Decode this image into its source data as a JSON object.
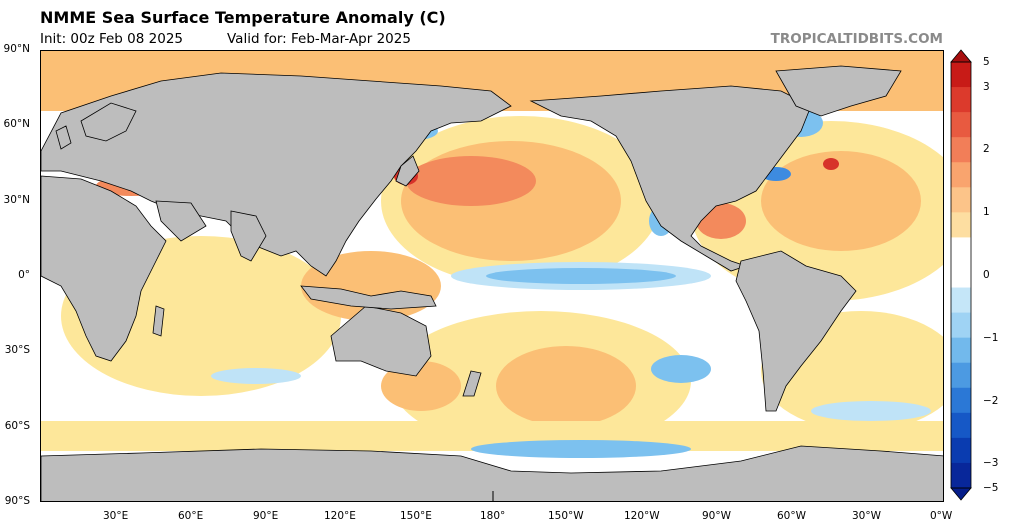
{
  "header": {
    "title": "NMME Sea Surface Temperature Anomaly (C)",
    "init": "Init: 00z Feb 08 2025",
    "valid": "Valid for: Feb-Mar-Apr 2025",
    "watermark": "TROPICALTIDBITS.COM"
  },
  "map": {
    "lat_labels": [
      "90°N",
      "60°N",
      "30°N",
      "0°",
      "30°S",
      "60°S",
      "90°S"
    ],
    "lon_labels": [
      "30°E",
      "60°E",
      "90°E",
      "120°E",
      "150°E",
      "180°",
      "150°W",
      "120°W",
      "90°W",
      "60°W",
      "30°W",
      "0°W"
    ],
    "colors": {
      "land": "#bdbdbd",
      "ocean_neutral": "#ffffff",
      "warm_light": "#fde79a",
      "warm_mid": "#fbbf75",
      "warm_strong": "#f38a5c",
      "warm_max": "#d7322a",
      "cool_light": "#bfe3f7",
      "cool_mid": "#7cc1ef",
      "cool_strong": "#3d8be0"
    }
  },
  "colorbar": {
    "labels": [
      "5",
      "3",
      "2",
      "1",
      "0",
      "−1",
      "−2",
      "−3",
      "−5"
    ],
    "levels": [
      5,
      3,
      2,
      1,
      0,
      -1,
      -2,
      -3,
      -5
    ],
    "colors": [
      "#c81b17",
      "#dc3a2c",
      "#e85a40",
      "#f27e58",
      "#f9a46e",
      "#fcc489",
      "#fddea1",
      "#ffffff",
      "#ffffff",
      "#c5e6f8",
      "#9fd3f4",
      "#72b9ec",
      "#4c9ae2",
      "#2b78d6",
      "#1658c6",
      "#0a3cb0",
      "#08279a"
    ]
  }
}
